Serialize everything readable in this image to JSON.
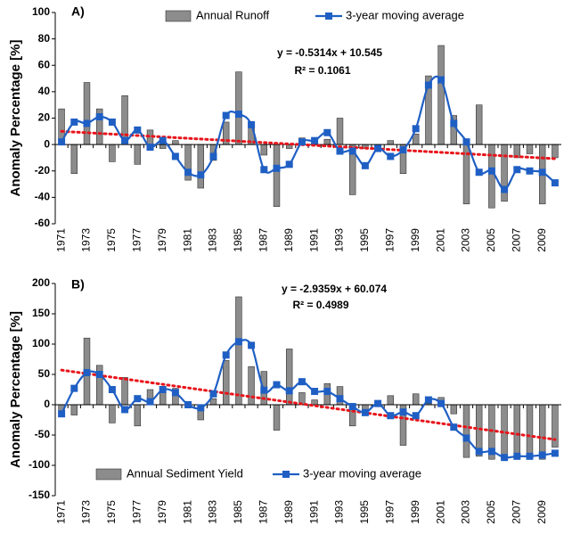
{
  "chart_data": [
    {
      "type": "bar",
      "title": "A)",
      "ylabel": "Anomaly Percentage [%]",
      "categories": [
        "1971",
        null,
        "1973",
        null,
        "1975",
        null,
        "1977",
        null,
        "1979",
        null,
        "1981",
        null,
        "1983",
        null,
        "1985",
        null,
        "1987",
        null,
        "1989",
        null,
        "1991",
        null,
        "1993",
        null,
        "1995",
        null,
        "1997",
        null,
        "1999",
        null,
        "2001",
        null,
        "2003",
        null,
        "2005",
        null,
        "2007",
        null,
        "2009",
        null
      ],
      "series": [
        {
          "name": "Annual Runoff",
          "type": "bar",
          "color": "#8c8c8c",
          "values": [
            27,
            -22,
            47,
            27,
            -13,
            37,
            -15,
            11,
            -3,
            3,
            -27,
            -33,
            -12,
            17,
            55,
            17,
            -8,
            -47,
            -3,
            5,
            3,
            4,
            20,
            -38,
            -3,
            -5,
            3,
            -22,
            8,
            52,
            75,
            22,
            -45,
            30,
            -48,
            -43,
            -10,
            -7,
            -45,
            -10
          ]
        },
        {
          "name": "3-year moving average",
          "type": "line",
          "color": "#1f5fc4",
          "values": [
            2,
            17,
            16,
            21,
            17,
            3,
            11,
            -2,
            3,
            -9,
            -21,
            -23,
            -9,
            22,
            23,
            15,
            -19,
            -18,
            -15,
            2,
            3,
            9,
            -5,
            -5,
            -16,
            -3,
            -9,
            -4,
            12,
            45,
            49,
            16,
            2,
            -21,
            -20,
            -34,
            -19,
            -20,
            -21,
            -29
          ]
        }
      ],
      "annotations": [
        "y = -0.5314x + 10.545",
        "R² = 0.1061"
      ],
      "trend_color": "#e8141a",
      "ylim": [
        -60,
        100
      ],
      "yticks": [
        -60,
        -40,
        -20,
        0,
        20,
        40,
        60,
        80,
        100
      ],
      "legend": "top"
    },
    {
      "type": "bar",
      "title": "B)",
      "ylabel": "Anomaly Percentage [%]",
      "categories": [
        "1971",
        null,
        "1973",
        null,
        "1975",
        null,
        "1977",
        null,
        "1979",
        null,
        "1981",
        null,
        "1983",
        null,
        "1985",
        null,
        "1987",
        null,
        "1989",
        null,
        "1991",
        null,
        "1993",
        null,
        "1995",
        null,
        "1997",
        null,
        "1999",
        null,
        "2001",
        null,
        "2003",
        null,
        "2005",
        null,
        "2007",
        null,
        "2009",
        null
      ],
      "series": [
        {
          "name": "Annual Sediment Yield",
          "type": "bar",
          "color": "#8c8c8c",
          "values": [
            -15,
            -17,
            110,
            65,
            -30,
            45,
            -35,
            25,
            30,
            27,
            0,
            -25,
            10,
            73,
            178,
            63,
            55,
            -42,
            92,
            20,
            8,
            35,
            30,
            -35,
            -10,
            -3,
            15,
            -67,
            18,
            2,
            12,
            -15,
            -87,
            -85,
            -90,
            -88,
            -85,
            -87,
            -90,
            -70
          ]
        },
        {
          "name": "3-year moving average",
          "type": "line",
          "color": "#1f5fc4",
          "values": [
            -15,
            27,
            53,
            50,
            25,
            -8,
            10,
            5,
            25,
            20,
            0,
            -5,
            18,
            82,
            104,
            98,
            24,
            33,
            23,
            38,
            22,
            22,
            10,
            -3,
            -13,
            2,
            -18,
            -12,
            -18,
            8,
            2,
            -37,
            -55,
            -77,
            -77,
            -87,
            -85,
            -85,
            -83,
            -80
          ]
        }
      ],
      "annotations": [
        "y = -2.9359x + 60.074",
        "R² = 0.4989"
      ],
      "trend_color": "#e8141a",
      "ylim": [
        -150,
        200
      ],
      "yticks": [
        -150,
        -100,
        -50,
        0,
        50,
        100,
        150,
        200
      ],
      "legend": "bottom"
    }
  ]
}
